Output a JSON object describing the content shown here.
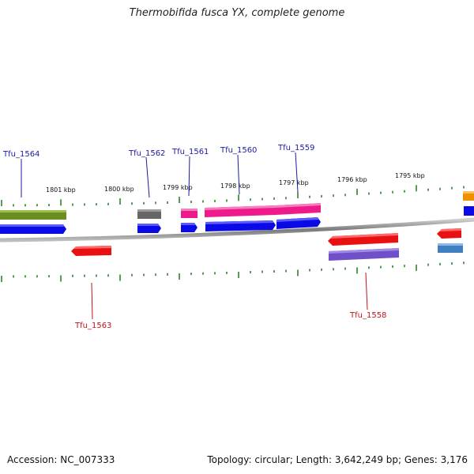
{
  "title": "Thermobifida fusca YX, complete genome",
  "accession": "Accession: NC_007333",
  "summary": "Topology: circular; Length: 3,642,249 bp; Genes: 3,176",
  "scale_labels": [
    "1801 kbp",
    "1800 kbp",
    "1799 kbp",
    "1798 kbp",
    "1797 kbp",
    "1796 kbp",
    "1795 kbp"
  ],
  "gene_labels_top": [
    "Tfu_1564",
    "Tfu_1562",
    "Tfu_1561",
    "Tfu_1560",
    "Tfu_1559"
  ],
  "gene_labels_bottom": [
    "Tfu_1563",
    "Tfu_1558"
  ],
  "colors": {
    "backbone": "#8c8c8c",
    "ticks": "#1e7a1e",
    "olive": "#6b8e23",
    "blue": "#0a0ae6",
    "red": "#e81010",
    "pink": "#ee1a8c",
    "gray": "#666666",
    "purple": "#7050c8",
    "steelblue": "#3f7fbf",
    "orange": "#f09000"
  }
}
